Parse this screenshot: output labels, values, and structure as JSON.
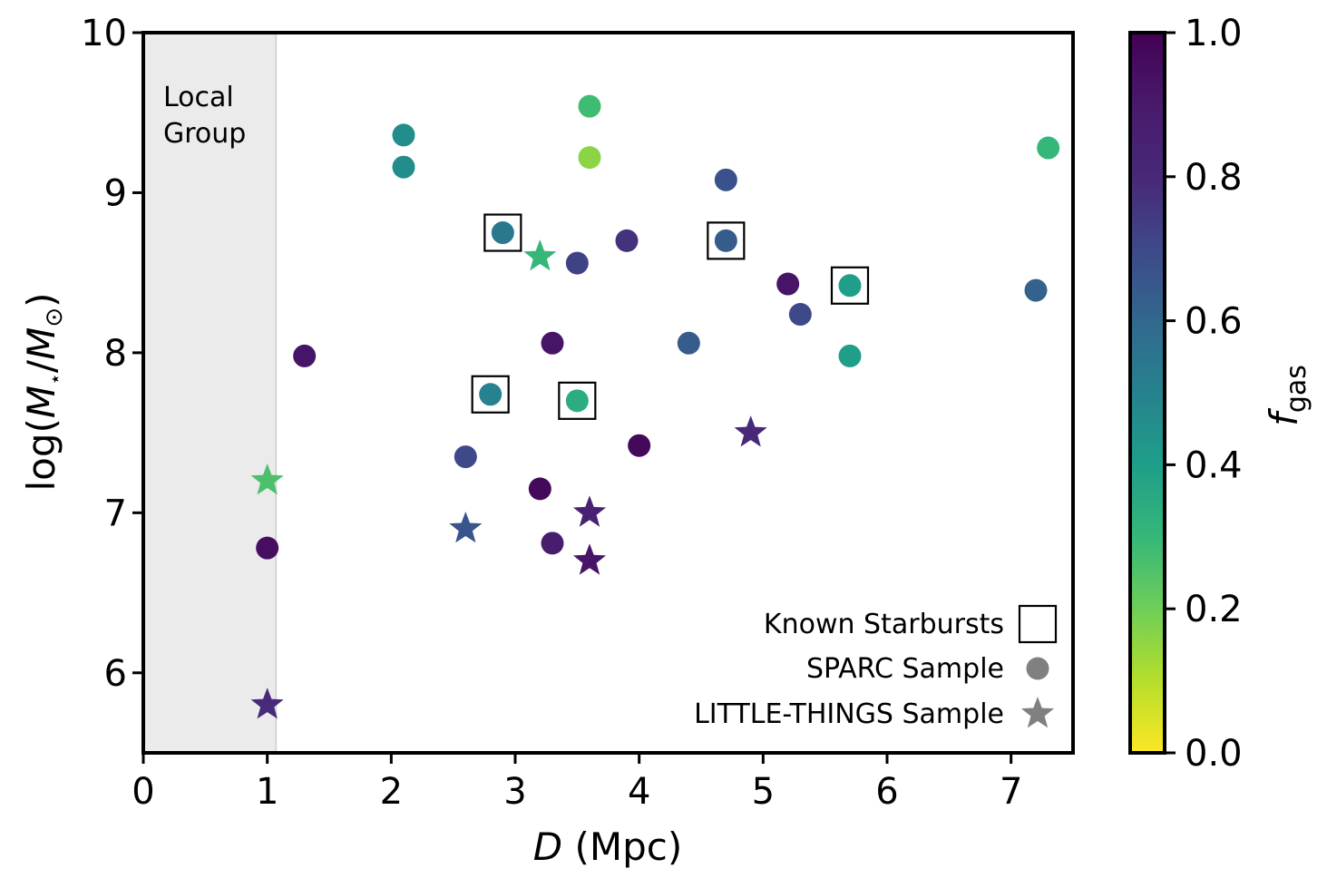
{
  "chart_data": {
    "type": "scatter",
    "xlabel_var": "D",
    "xlabel_unit": " (Mpc)",
    "ylabel": "log(M⋆/M⊙)",
    "ylabel_parts": {
      "prefix": "log(",
      "m1": "M",
      "star": "⋆",
      "slash": "/",
      "m2": "M",
      "sun": "⊙",
      "suffix": ")"
    },
    "xlim": [
      0,
      7.5
    ],
    "ylim": [
      5.5,
      10
    ],
    "xticks": [
      "0",
      "1",
      "2",
      "3",
      "4",
      "5",
      "6",
      "7"
    ],
    "yticks": [
      "6",
      "7",
      "8",
      "9",
      "10"
    ],
    "shaded_region": {
      "x": [
        0,
        1.07
      ],
      "label_lines": [
        "Local",
        "Group"
      ]
    },
    "colorbar": {
      "label_var": "f",
      "label_sub": "gas",
      "range": [
        0,
        1
      ],
      "ticks": [
        "0.0",
        "0.2",
        "0.4",
        "0.6",
        "0.8",
        "1.0"
      ],
      "colormap": "viridis"
    },
    "legend": {
      "placement": "lower-right",
      "entries": [
        {
          "label": "Known Starbursts",
          "marker": "open-square",
          "color": "#000000"
        },
        {
          "label": "SPARC Sample",
          "marker": "circle",
          "color": "#808080"
        },
        {
          "label": "LITTLE-THINGS Sample",
          "marker": "star",
          "color": "#808080"
        }
      ]
    },
    "series": [
      {
        "name": "SPARC Sample",
        "marker": "circle",
        "points": [
          {
            "x": 2.1,
            "y": 9.36,
            "fgas": 0.46,
            "starburst": false
          },
          {
            "x": 2.1,
            "y": 9.16,
            "fgas": 0.46,
            "starburst": false
          },
          {
            "x": 3.6,
            "y": 9.54,
            "fgas": 0.28,
            "starburst": false
          },
          {
            "x": 3.6,
            "y": 9.22,
            "fgas": 0.16,
            "starburst": false
          },
          {
            "x": 7.3,
            "y": 9.28,
            "fgas": 0.3,
            "starburst": false
          },
          {
            "x": 4.7,
            "y": 9.08,
            "fgas": 0.67,
            "starburst": false
          },
          {
            "x": 2.9,
            "y": 8.75,
            "fgas": 0.54,
            "starburst": true
          },
          {
            "x": 3.9,
            "y": 8.7,
            "fgas": 0.77,
            "starburst": false
          },
          {
            "x": 4.7,
            "y": 8.7,
            "fgas": 0.64,
            "starburst": true
          },
          {
            "x": 3.5,
            "y": 8.56,
            "fgas": 0.72,
            "starburst": false
          },
          {
            "x": 5.2,
            "y": 8.43,
            "fgas": 0.92,
            "starburst": false
          },
          {
            "x": 5.7,
            "y": 8.42,
            "fgas": 0.4,
            "starburst": true
          },
          {
            "x": 7.2,
            "y": 8.39,
            "fgas": 0.62,
            "starburst": false
          },
          {
            "x": 5.3,
            "y": 8.24,
            "fgas": 0.7,
            "starburst": false
          },
          {
            "x": 1.3,
            "y": 7.98,
            "fgas": 0.92,
            "starburst": false
          },
          {
            "x": 3.3,
            "y": 8.06,
            "fgas": 0.92,
            "starburst": false
          },
          {
            "x": 4.4,
            "y": 8.06,
            "fgas": 0.64,
            "starburst": false
          },
          {
            "x": 5.7,
            "y": 7.98,
            "fgas": 0.4,
            "starburst": false
          },
          {
            "x": 2.8,
            "y": 7.74,
            "fgas": 0.5,
            "starburst": true
          },
          {
            "x": 3.5,
            "y": 7.7,
            "fgas": 0.34,
            "starburst": true
          },
          {
            "x": 4.0,
            "y": 7.42,
            "fgas": 0.97,
            "starburst": false
          },
          {
            "x": 2.6,
            "y": 7.35,
            "fgas": 0.7,
            "starburst": false
          },
          {
            "x": 3.2,
            "y": 7.15,
            "fgas": 0.97,
            "starburst": false
          },
          {
            "x": 1.0,
            "y": 6.78,
            "fgas": 0.95,
            "starburst": false
          },
          {
            "x": 3.3,
            "y": 6.81,
            "fgas": 0.88,
            "starburst": false
          }
        ]
      },
      {
        "name": "LITTLE-THINGS Sample",
        "marker": "star",
        "points": [
          {
            "x": 3.2,
            "y": 8.6,
            "fgas": 0.3,
            "starburst": false
          },
          {
            "x": 4.9,
            "y": 7.5,
            "fgas": 0.8,
            "starburst": false
          },
          {
            "x": 1.0,
            "y": 7.2,
            "fgas": 0.26,
            "starburst": false
          },
          {
            "x": 3.6,
            "y": 7.0,
            "fgas": 0.85,
            "starburst": false
          },
          {
            "x": 2.6,
            "y": 6.9,
            "fgas": 0.66,
            "starburst": false
          },
          {
            "x": 3.6,
            "y": 6.7,
            "fgas": 0.92,
            "starburst": false
          },
          {
            "x": 1.0,
            "y": 5.8,
            "fgas": 0.79,
            "starburst": false
          }
        ]
      }
    ]
  }
}
